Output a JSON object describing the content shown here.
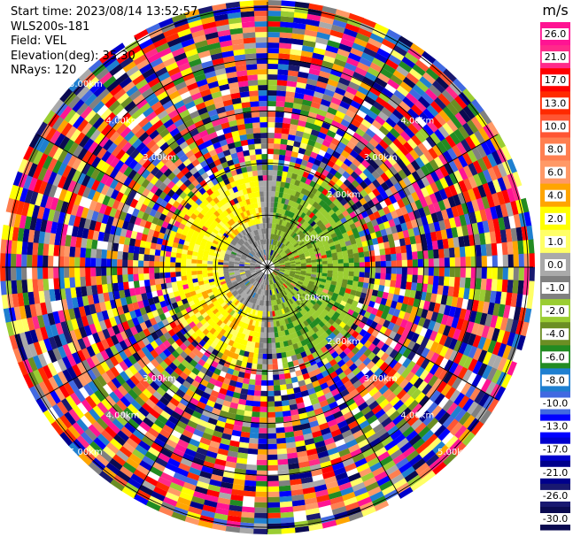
{
  "info": {
    "start_time": "Start time: 2023/08/14 13:52:57",
    "site": "WLS200s-181",
    "field": "Field: VEL",
    "elevation": "Elevation(deg): 35.30",
    "nrays": "NRays: 120"
  },
  "chart_data": {
    "type": "heatmap",
    "projection": "polar-ppi",
    "nrays": 120,
    "ring_labels": [
      {
        "text": "1.00km",
        "range_km": 1,
        "azimuths_deg": [
          55,
          125
        ]
      },
      {
        "text": "2.00km",
        "range_km": 2,
        "azimuths_deg": [
          45,
          135
        ]
      },
      {
        "text": "3.00km",
        "range_km": 3,
        "azimuths_deg": [
          45,
          135,
          225,
          315
        ]
      },
      {
        "text": "4.00km",
        "range_km": 4,
        "azimuths_deg": [
          45,
          135,
          225,
          315
        ]
      },
      {
        "text": "5.00km",
        "range_km": 5,
        "azimuths_deg": [
          135,
          225,
          315
        ]
      }
    ],
    "max_range_km": 5.1,
    "colorbar": {
      "unit": "m/s",
      "tick_labels": [
        "26.0",
        "21.0",
        "17.0",
        "13.0",
        "10.0",
        "8.0",
        "6.0",
        "4.0",
        "2.0",
        "1.0",
        "0.0",
        "-1.0",
        "-2.0",
        "-4.0",
        "-6.0",
        "-8.0",
        "-10.0",
        "-13.0",
        "-17.0",
        "-21.0",
        "-26.0",
        "-30.0"
      ],
      "colors": [
        "#ff1493",
        "#ff2a8a",
        "#ff0000",
        "#ff2a00",
        "#ff5533",
        "#ff7f50",
        "#ff9966",
        "#ffa500",
        "#ffff00",
        "#ffff66",
        "#a9a9a9",
        "#808080",
        "#9acd32",
        "#6b8e23",
        "#228b22",
        "#1e7fd0",
        "#4169e1",
        "#0000ff",
        "#0000cd",
        "#00008b",
        "#191970",
        "#0a0a50"
      ]
    }
  }
}
